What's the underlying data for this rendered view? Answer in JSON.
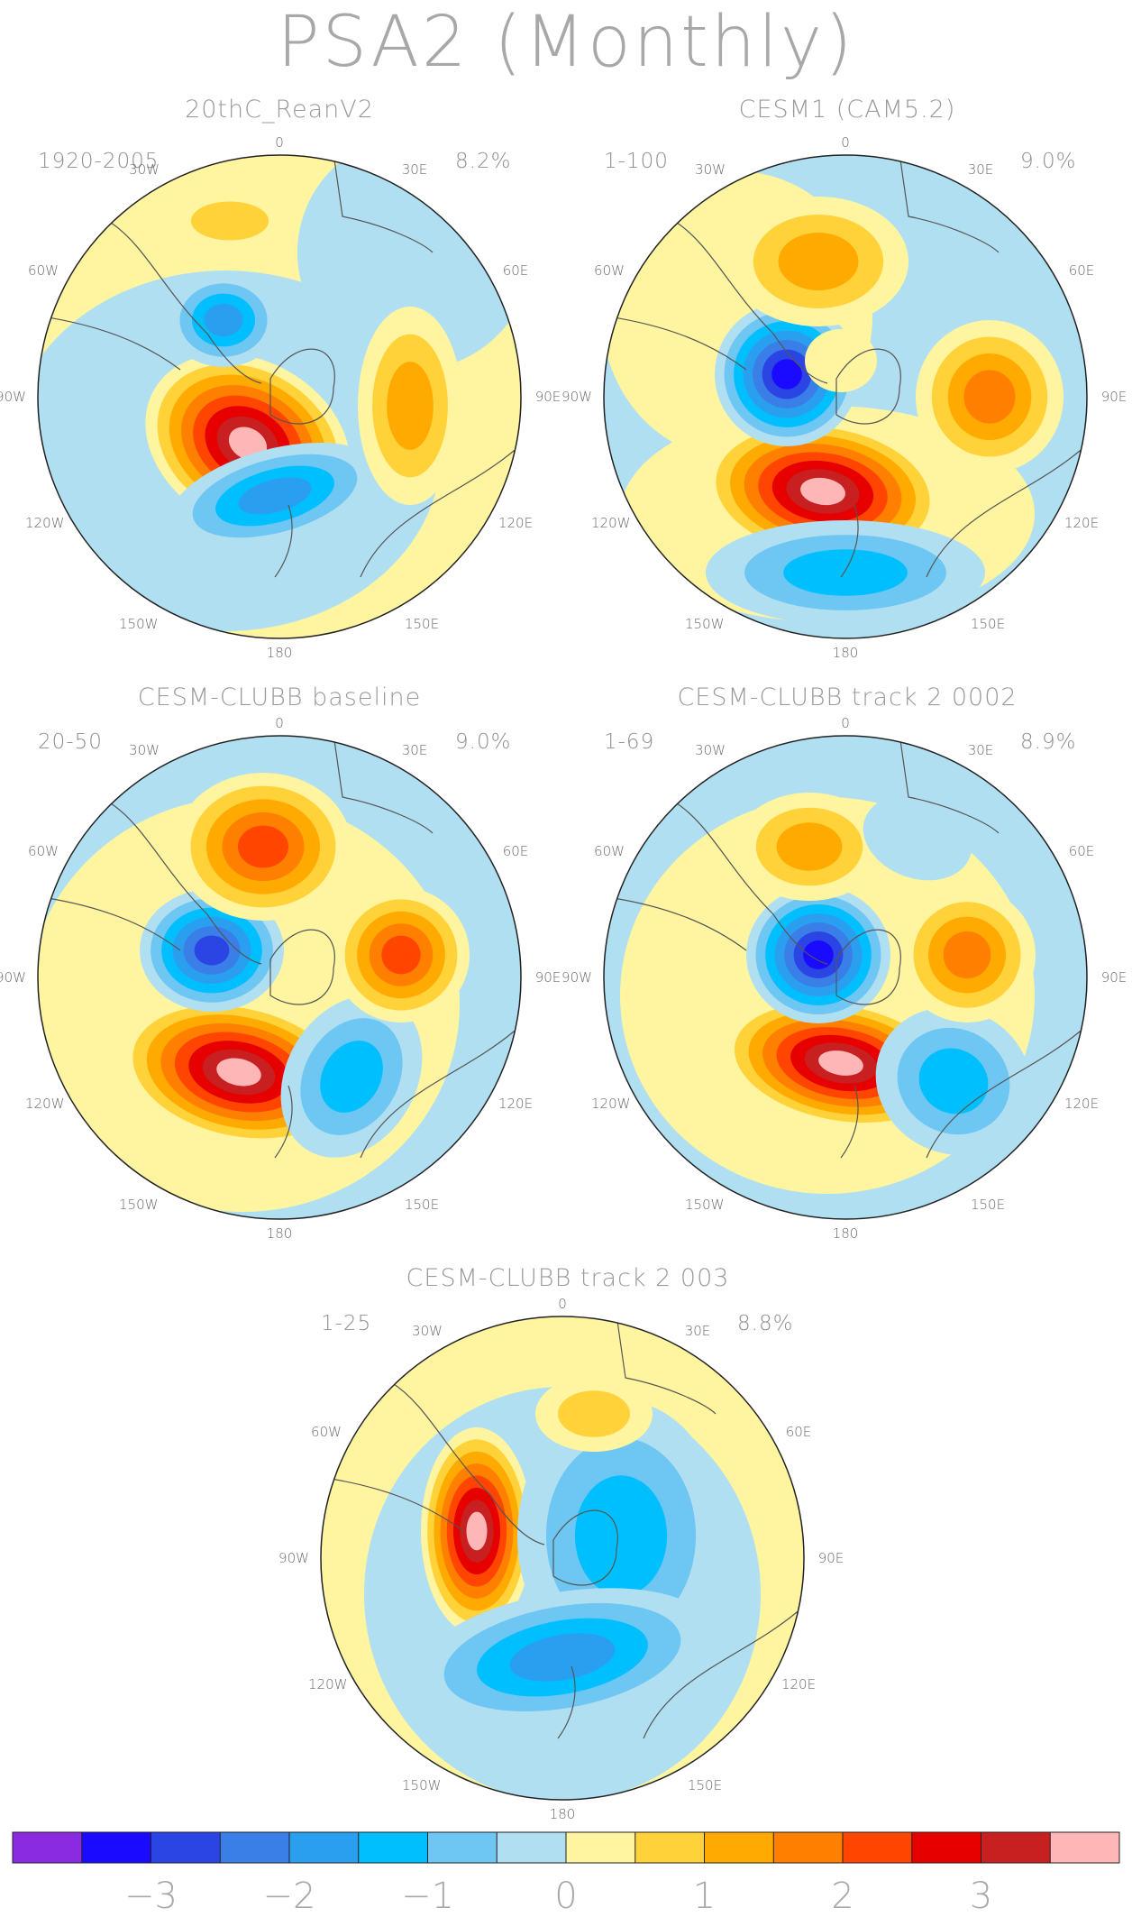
{
  "title": "PSA2 (Monthly)",
  "panels": [
    {
      "name": "20thC_ReanV2",
      "years": "1920-2005",
      "pct": "8.2%"
    },
    {
      "name": "CESM1 (CAM5.2)",
      "years": "1-100",
      "pct": "9.0%"
    },
    {
      "name": "CESM-CLUBB baseline",
      "years": "20-50",
      "pct": "9.0%"
    },
    {
      "name": "CESM-CLUBB track 2 0002",
      "years": "1-69",
      "pct": "8.9%"
    },
    {
      "name": "CESM-CLUBB track 2 003",
      "years": "1-25",
      "pct": "8.8%"
    }
  ],
  "lon_labels": {
    "top": "0",
    "bottom": "180",
    "l30": "30W",
    "r30": "30E",
    "l60": "60W",
    "r60": "60E",
    "l90": "90W",
    "r90": "90E",
    "l120": "120W",
    "r120": "120E",
    "l150": "150W",
    "r150": "150E"
  },
  "colorbar": {
    "colors": [
      "#8a2be2",
      "#1a0aff",
      "#2b45e5",
      "#3a7ee8",
      "#2a9ff0",
      "#00bfff",
      "#6ec6f2",
      "#b0dff2",
      "#fff5a0",
      "#ffd23a",
      "#ffaa00",
      "#ff7f00",
      "#ff4500",
      "#e60000",
      "#c82020",
      "#ffb6b6"
    ],
    "labels": [
      "−3",
      "−2",
      "−1",
      "0",
      "1",
      "2",
      "3"
    ]
  }
}
